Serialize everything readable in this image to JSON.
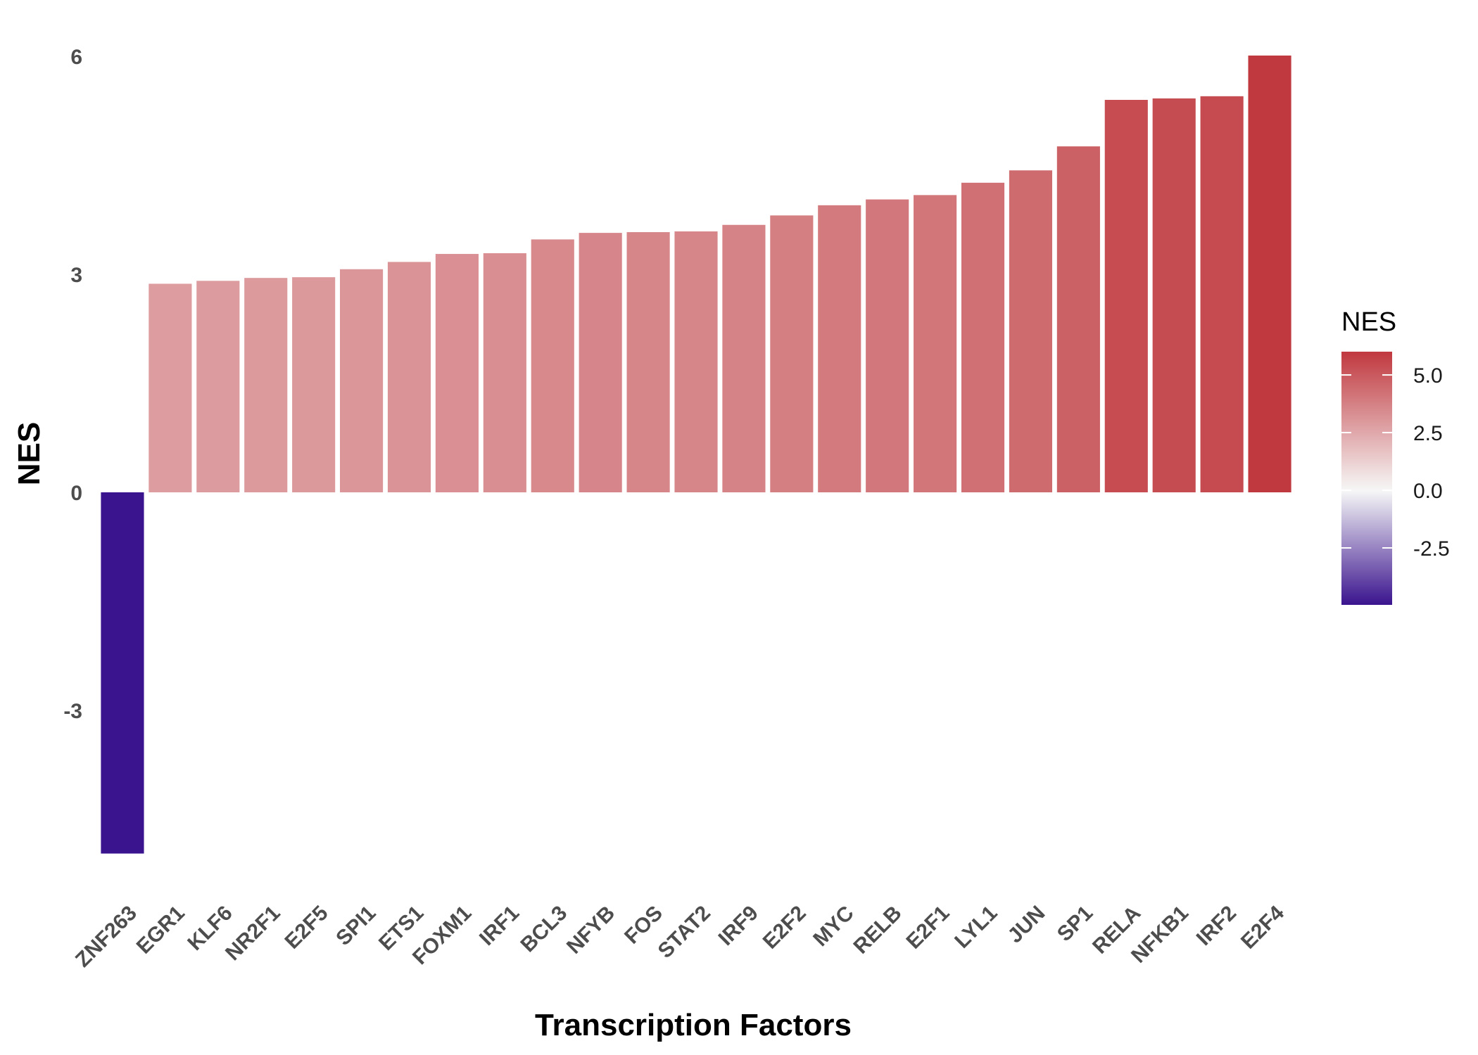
{
  "chart_data": {
    "type": "bar",
    "xlabel": "Transcription Factors",
    "ylabel": "NES",
    "ylim": [
      -5.3,
      6.2
    ],
    "yticks": [
      -3,
      0,
      3,
      6
    ],
    "grid": false,
    "categories": [
      "ZNF263",
      "EGR1",
      "KLF6",
      "NR2F1",
      "E2F5",
      "SPI1",
      "ETS1",
      "FOXM1",
      "IRF1",
      "BCL3",
      "NFYB",
      "FOS",
      "STAT2",
      "IRF9",
      "E2F2",
      "MYC",
      "RELB",
      "E2F1",
      "LYL1",
      "JUN",
      "SP1",
      "RELA",
      "NFKB1",
      "IRF2",
      "E2F4"
    ],
    "values": [
      -4.97,
      2.87,
      2.91,
      2.95,
      2.96,
      3.07,
      3.17,
      3.28,
      3.29,
      3.48,
      3.57,
      3.58,
      3.59,
      3.68,
      3.81,
      3.95,
      4.03,
      4.09,
      4.26,
      4.43,
      4.76,
      5.4,
      5.42,
      5.45,
      6.01
    ],
    "legend": {
      "title": "NES",
      "position": "right",
      "ticks": [
        5.0,
        2.5,
        0.0,
        -2.5
      ],
      "tick_labels": [
        "5.0",
        "2.5",
        "0.0",
        "-2.5"
      ],
      "range": [
        -4.97,
        6.01
      ]
    },
    "colors": {
      "low": "#3a148e",
      "mid": "#f7f7f7",
      "high": "#c0393f"
    }
  }
}
